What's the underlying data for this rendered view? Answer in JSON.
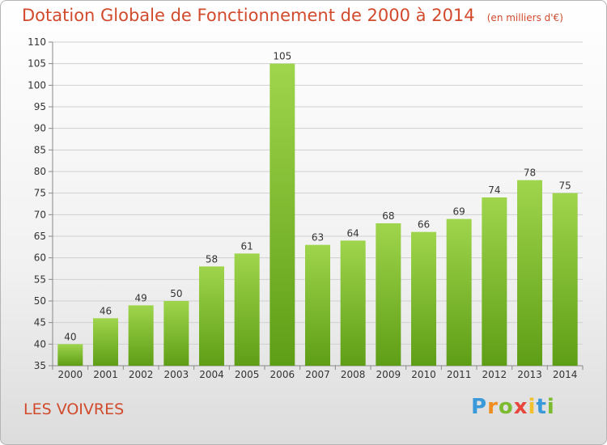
{
  "chart_data": {
    "type": "bar",
    "title": "Dotation Globale de Fonctionnement de 2000 à 2014",
    "subtitle": "(en milliers d'€)",
    "categories": [
      "2000",
      "2001",
      "2002",
      "2003",
      "2004",
      "2005",
      "2006",
      "2007",
      "2008",
      "2009",
      "2010",
      "2011",
      "2012",
      "2013",
      "2014"
    ],
    "values": [
      40,
      46,
      49,
      50,
      58,
      61,
      105,
      63,
      64,
      68,
      66,
      69,
      74,
      78,
      75
    ],
    "ylim": [
      35,
      110
    ],
    "yticks": [
      35,
      40,
      45,
      50,
      55,
      60,
      65,
      70,
      75,
      80,
      85,
      90,
      95,
      100,
      105,
      110
    ],
    "xlabel": "",
    "ylabel": "",
    "grid": "horizontal",
    "bar_color": "#7cbb2f"
  },
  "footer": {
    "place": "LES VOIVRES",
    "logo": {
      "letters": [
        "P",
        "r",
        "o",
        "x",
        "i",
        "t",
        "i"
      ],
      "colors": [
        "#3a9ad9",
        "#f28c1e",
        "#7cbb2f",
        "#e8453c",
        "#f2c12e",
        "#3a9ad9",
        "#7cbb2f"
      ]
    }
  }
}
